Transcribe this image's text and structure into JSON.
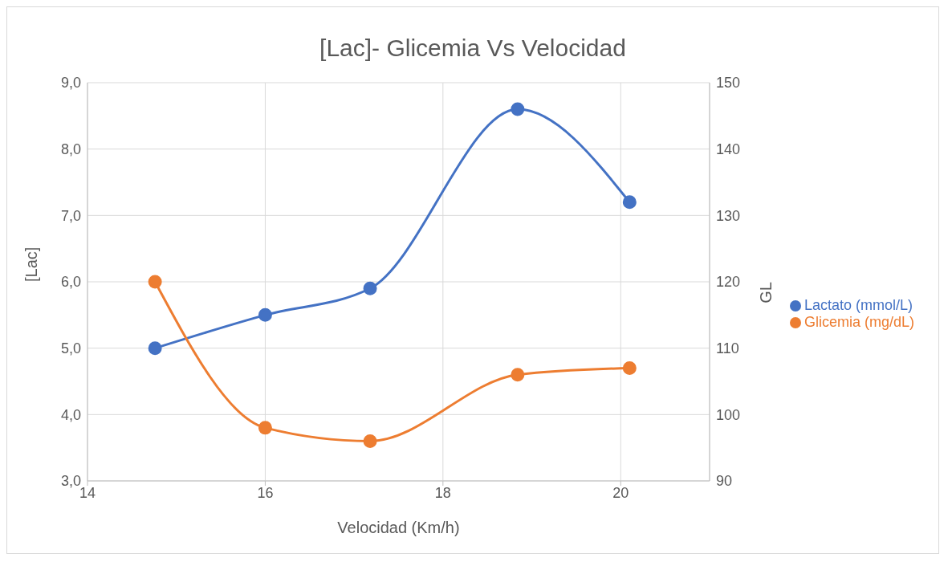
{
  "chart_data": {
    "type": "line",
    "title": "[Lac]- Glicemia Vs Velocidad",
    "xlabel": "Velocidad (Km/h)",
    "ylabel": "[Lac]",
    "y2label": "GL",
    "x": [
      14.76,
      16.0,
      17.18,
      18.84,
      20.1
    ],
    "series": [
      {
        "name": "Lactato (mmol/L)",
        "color": "#4472c4",
        "values": [
          5.0,
          5.5,
          5.9,
          8.6,
          7.2
        ]
      },
      {
        "name": "Glicemia (mg/dL)",
        "color": "#ed7d31",
        "values": [
          120,
          98,
          96,
          106,
          107
        ],
        "axis": "y2"
      }
    ],
    "xlim": [
      14,
      21
    ],
    "xticks": [
      14,
      16,
      18,
      20
    ],
    "ylim": [
      3,
      9
    ],
    "yticks": [
      {
        "value": 3,
        "label": "3,0"
      },
      {
        "value": 4,
        "label": "4,0"
      },
      {
        "value": 5,
        "label": "5,0"
      },
      {
        "value": 6,
        "label": "6,0"
      },
      {
        "value": 7,
        "label": "7,0"
      },
      {
        "value": 8,
        "label": "8,0"
      },
      {
        "value": 9,
        "label": "9,0"
      }
    ],
    "y2lim": [
      90,
      150
    ],
    "y2ticks": [
      90,
      100,
      110,
      120,
      130,
      140,
      150
    ],
    "grid": true,
    "legend": "right",
    "marker": "circle",
    "line_style": "solid"
  }
}
